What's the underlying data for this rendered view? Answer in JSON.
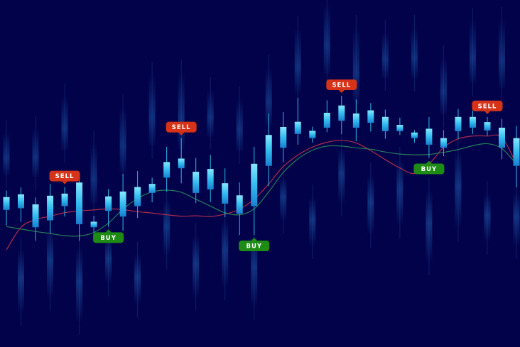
{
  "chart_data": {
    "type": "candlestick",
    "background": "#02024a",
    "colors": {
      "candle": "#2fb8ee",
      "candle_bright": "#7fe4ff",
      "ghost_candle": "#1d57a8",
      "ma_fast": "#c0304a",
      "ma_slow": "#2a8a5c",
      "sell": "#d63318",
      "buy": "#1e8b14"
    },
    "ylim": [
      0,
      100
    ],
    "grid": false,
    "candles": [
      {
        "open": 43.2,
        "close": 39.5,
        "high": 45.1,
        "low": 35.0
      },
      {
        "open": 44.0,
        "close": 40.0,
        "high": 46.0,
        "low": 36.1
      },
      {
        "open": 41.1,
        "close": 34.5,
        "high": 43.1,
        "low": 30.6
      },
      {
        "open": 43.6,
        "close": 36.5,
        "high": 47.0,
        "low": 32.7
      },
      {
        "open": 44.2,
        "close": 40.6,
        "high": 46.1,
        "low": 37.6
      },
      {
        "open": 47.4,
        "close": 35.4,
        "high": 48.1,
        "low": 30.6
      },
      {
        "open": 36.1,
        "close": 34.5,
        "high": 37.8,
        "low": 32.9
      },
      {
        "open": 39.2,
        "close": 43.4,
        "high": 45.5,
        "low": 34.7
      },
      {
        "open": 44.8,
        "close": 37.6,
        "high": 49.9,
        "low": 33.5
      },
      {
        "open": 46.1,
        "close": 40.6,
        "high": 50.7,
        "low": 37.2
      },
      {
        "open": 47.0,
        "close": 44.4,
        "high": 48.8,
        "low": 41.7
      },
      {
        "open": 48.8,
        "close": 53.3,
        "high": 57.7,
        "low": 44.8
      },
      {
        "open": 51.5,
        "close": 54.3,
        "high": 60.2,
        "low": 47.2
      },
      {
        "open": 50.5,
        "close": 44.4,
        "high": 54.5,
        "low": 41.5
      },
      {
        "open": 51.3,
        "close": 45.4,
        "high": 55.4,
        "low": 41.8
      },
      {
        "open": 47.2,
        "close": 41.3,
        "high": 51.5,
        "low": 37.4
      },
      {
        "open": 43.7,
        "close": 38.4,
        "high": 47.4,
        "low": 32.3
      },
      {
        "open": 52.8,
        "close": 40.6,
        "high": 57.7,
        "low": 32.3
      },
      {
        "open": 61.1,
        "close": 52.2,
        "high": 67.3,
        "low": 46.4
      },
      {
        "open": 63.4,
        "close": 57.4,
        "high": 67.7,
        "low": 53.2
      },
      {
        "open": 64.9,
        "close": 61.4,
        "high": 71.8,
        "low": 58.3
      },
      {
        "open": 62.3,
        "close": 60.2,
        "high": 63.5,
        "low": 58.9
      },
      {
        "open": 67.5,
        "close": 63.2,
        "high": 71.1,
        "low": 61.9
      },
      {
        "open": 69.6,
        "close": 65.2,
        "high": 72.4,
        "low": 61.3
      },
      {
        "open": 67.3,
        "close": 63.2,
        "high": 71.3,
        "low": 59.3
      },
      {
        "open": 68.2,
        "close": 64.6,
        "high": 70.3,
        "low": 62.1
      },
      {
        "open": 66.3,
        "close": 62.2,
        "high": 68.4,
        "low": 60.0
      },
      {
        "open": 64.0,
        "close": 62.2,
        "high": 66.1,
        "low": 61.1
      },
      {
        "open": 61.8,
        "close": 60.2,
        "high": 62.5,
        "low": 58.9
      },
      {
        "open": 62.9,
        "close": 58.3,
        "high": 66.3,
        "low": 54.5
      },
      {
        "open": 60.2,
        "close": 57.4,
        "high": 62.5,
        "low": 55.0
      },
      {
        "open": 66.3,
        "close": 62.2,
        "high": 68.6,
        "low": 59.9
      },
      {
        "open": 66.3,
        "close": 63.2,
        "high": 68.1,
        "low": 61.4
      },
      {
        "open": 64.8,
        "close": 62.4,
        "high": 66.3,
        "low": 60.9
      },
      {
        "open": 63.2,
        "close": 57.4,
        "high": 65.7,
        "low": 54.2
      },
      {
        "open": 60.2,
        "close": 52.2,
        "high": 63.7,
        "low": 46.0
      }
    ],
    "moving_averages": [
      {
        "color_key": "ma_fast",
        "values": [
          28.0,
          34.5,
          36.7,
          37.7,
          38.7,
          39.2,
          39.5,
          39.8,
          39.6,
          39.0,
          38.6,
          38.1,
          37.7,
          37.8,
          37.6,
          38.3,
          39.7,
          42.6,
          47.0,
          52.0,
          55.3,
          57.6,
          59.0,
          59.6,
          58.8,
          56.6,
          54.0,
          51.6,
          50.0,
          52.7,
          57.5,
          60.0,
          60.8,
          60.8,
          60.4,
          52.7
        ]
      },
      {
        "color_key": "ma_slow",
        "values": [
          34.7,
          34.0,
          33.3,
          32.7,
          32.1,
          32.0,
          33.0,
          35.7,
          39.7,
          42.8,
          44.7,
          45.2,
          44.6,
          42.6,
          40.6,
          38.7,
          38.1,
          39.8,
          44.7,
          50.3,
          54.2,
          56.7,
          57.9,
          57.9,
          57.4,
          57.0,
          56.2,
          55.6,
          55.4,
          55.5,
          56.1,
          56.9,
          58.0,
          58.6,
          57.2,
          52.7
        ]
      }
    ],
    "signals": [
      {
        "label": "SELL",
        "kind": "sell",
        "candle_index": 4
      },
      {
        "label": "BUY",
        "kind": "buy",
        "candle_index": 7
      },
      {
        "label": "SELL",
        "kind": "sell",
        "candle_index": 12
      },
      {
        "label": "BUY",
        "kind": "buy",
        "candle_index": 17
      },
      {
        "label": "SELL",
        "kind": "sell",
        "candle_index": 23
      },
      {
        "label": "BUY",
        "kind": "buy",
        "candle_index": 29
      },
      {
        "label": "SELL",
        "kind": "sell",
        "candle_index": 33
      }
    ]
  }
}
